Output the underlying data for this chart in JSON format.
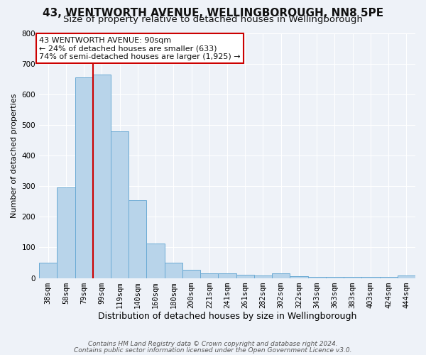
{
  "title": "43, WENTWORTH AVENUE, WELLINGBOROUGH, NN8 5PE",
  "subtitle": "Size of property relative to detached houses in Wellingborough",
  "xlabel": "Distribution of detached houses by size in Wellingborough",
  "ylabel": "Number of detached properties",
  "bar_labels": [
    "38sqm",
    "58sqm",
    "79sqm",
    "99sqm",
    "119sqm",
    "140sqm",
    "160sqm",
    "180sqm",
    "200sqm",
    "221sqm",
    "241sqm",
    "261sqm",
    "282sqm",
    "302sqm",
    "322sqm",
    "343sqm",
    "363sqm",
    "383sqm",
    "403sqm",
    "424sqm",
    "444sqm"
  ],
  "bar_values": [
    50,
    295,
    655,
    665,
    480,
    253,
    113,
    50,
    28,
    15,
    15,
    10,
    8,
    15,
    5,
    3,
    3,
    3,
    3,
    3,
    8
  ],
  "bar_color": "#b8d4ea",
  "bar_edge_color": "#6aaad4",
  "vline_index": 3,
  "vline_color": "#cc0000",
  "ylim": [
    0,
    800
  ],
  "yticks": [
    0,
    100,
    200,
    300,
    400,
    500,
    600,
    700,
    800
  ],
  "annotation_title": "43 WENTWORTH AVENUE: 90sqm",
  "annotation_line1": "← 24% of detached houses are smaller (633)",
  "annotation_line2": "74% of semi-detached houses are larger (1,925) →",
  "annotation_box_facecolor": "#ffffff",
  "annotation_box_edgecolor": "#cc0000",
  "footer1": "Contains HM Land Registry data © Crown copyright and database right 2024.",
  "footer2": "Contains public sector information licensed under the Open Government Licence v3.0.",
  "background_color": "#eef2f8",
  "grid_color": "#ffffff",
  "title_fontsize": 11,
  "subtitle_fontsize": 9.5,
  "ylabel_fontsize": 8,
  "xlabel_fontsize": 9,
  "tick_fontsize": 7.5,
  "annotation_fontsize": 8,
  "footer_fontsize": 6.5
}
